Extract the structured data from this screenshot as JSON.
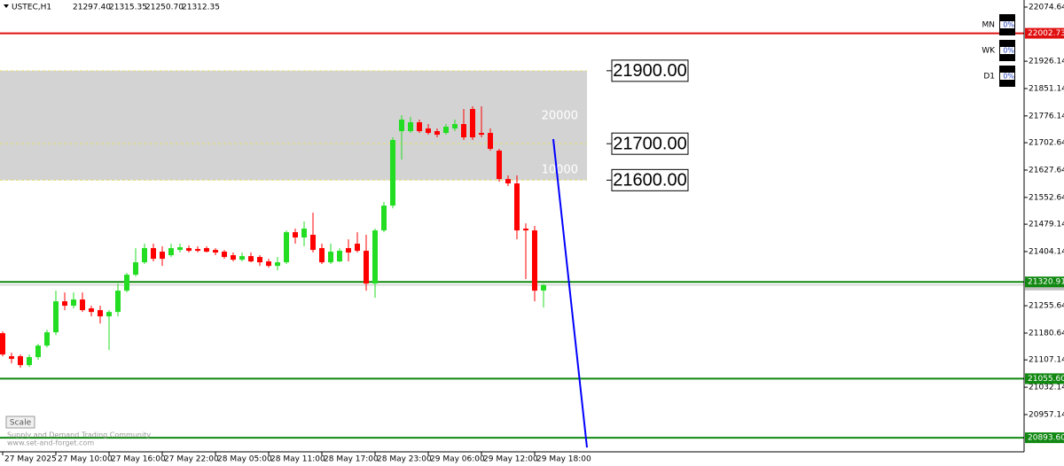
{
  "chart_data": {
    "type": "candlestick",
    "title": "USTEC,H1",
    "ohlc_header": [
      "21297.40",
      "21315.35",
      "21250.70",
      "21312.35"
    ],
    "ylim": [
      20855,
      22094
    ],
    "yticks": [
      22074.64,
      21926.14,
      21851.14,
      21776.14,
      21702.64,
      21627.64,
      21552.64,
      21479.14,
      21404.14,
      21255.64,
      21180.64,
      21107.14,
      21032.14,
      20957.14
    ],
    "categories": [
      "27 May 2025",
      null,
      null,
      null,
      null,
      null,
      "27 May 10:00",
      null,
      null,
      null,
      null,
      null,
      "27 May 16:00",
      null,
      null,
      null,
      null,
      null,
      "27 May 22:00",
      null,
      null,
      null,
      null,
      null,
      "28 May 05:00",
      null,
      null,
      null,
      null,
      null,
      "28 May 11:00",
      null,
      null,
      null,
      null,
      null,
      "28 May 17:00",
      null,
      null,
      null,
      null,
      null,
      "28 May 23:00",
      null,
      null,
      null,
      null,
      null,
      "29 May 06:00",
      null,
      null,
      null,
      null,
      null,
      "29 May 12:00",
      null,
      null,
      null,
      null,
      null,
      "29 May 18:00",
      null
    ],
    "open": [
      21180.3,
      21117.1,
      21117.1,
      21092.8,
      21114.7,
      21146.3,
      21182.8,
      21267.8,
      21255.7,
      21272.7,
      21248.4,
      21243.5,
      21226.5,
      21238.6,
      21297.0,
      21340.7,
      21374.7,
      21413.6,
      21403.9,
      21394.2,
      21408.7,
      21413.6,
      21411.2,
      21413.6,
      21408.7,
      21403.9,
      21394.2,
      21382.0,
      21391.7,
      21389.3,
      21377.2,
      21365.0,
      21374.7,
      21457.3,
      21442.8,
      21450.1,
      21413.6,
      21374.7,
      21377.2,
      21413.6,
      21425.8,
      21406.3,
      21316.4,
      21462.2,
      21530.2,
      21734.4,
      21734.4,
      21758.7,
      21741.7,
      21734.4,
      21729.5,
      21741.7,
      21753.8,
      21795.1,
      21729.5,
      21729.5,
      21680.9,
      21603.1,
      21591.0,
      21467.1,
      21462.2,
      21297.4
    ],
    "high": [
      21185.2,
      21126.9,
      21122.0,
      21122.0,
      21151.2,
      21190.0,
      21297.0,
      21292.1,
      21292.1,
      21292.1,
      21255.7,
      21255.7,
      21243.5,
      21316.4,
      21345.6,
      21413.6,
      21425.8,
      21425.8,
      21418.5,
      21425.8,
      21425.8,
      21420.9,
      21418.5,
      21418.5,
      21413.6,
      21408.7,
      21401.5,
      21401.5,
      21401.5,
      21394.2,
      21384.4,
      21389.3,
      21462.2,
      21467.1,
      21486.5,
      21510.8,
      21425.8,
      21425.8,
      21413.6,
      21437.9,
      21457.3,
      21450.1,
      21467.1,
      21540.0,
      21717.4,
      21778.1,
      21773.2,
      21766.0,
      21753.8,
      21741.7,
      21753.8,
      21766.0,
      21795.1,
      21802.4,
      21802.4,
      21741.7,
      21685.8,
      21612.9,
      21612.9,
      21481.6,
      21474.4,
      21315.35
    ],
    "low": [
      21117.1,
      21097.7,
      21085.6,
      21088.0,
      21107.4,
      21141.4,
      21175.5,
      21243.5,
      21248.4,
      21238.6,
      21226.5,
      21207.1,
      21134.2,
      21226.5,
      21292.1,
      21335.8,
      21369.9,
      21377.2,
      21365.0,
      21389.3,
      21401.5,
      21401.5,
      21401.5,
      21401.5,
      21394.2,
      21384.4,
      21377.2,
      21377.2,
      21374.7,
      21365.0,
      21360.1,
      21352.8,
      21369.9,
      21425.8,
      21418.5,
      21401.5,
      21369.9,
      21369.9,
      21374.7,
      21377.2,
      21401.5,
      21297.0,
      21277.5,
      21457.3,
      21522.9,
      21656.6,
      21729.5,
      21729.5,
      21724.6,
      21717.4,
      21724.6,
      21734.4,
      21710.1,
      21710.1,
      21717.4,
      21680.9,
      21595.8,
      21583.7,
      21437.9,
      21328.6,
      21267.8,
      21250.7
    ],
    "close": [
      21122.0,
      21109.9,
      21092.8,
      21114.7,
      21146.3,
      21182.8,
      21267.8,
      21255.7,
      21272.7,
      21243.5,
      21238.6,
      21226.5,
      21238.6,
      21297.0,
      21340.7,
      21374.7,
      21413.6,
      21384.4,
      21384.4,
      21413.6,
      21416.0,
      21406.3,
      21406.3,
      21403.9,
      21401.5,
      21389.3,
      21382.0,
      21391.7,
      21377.2,
      21374.7,
      21365.0,
      21374.7,
      21457.3,
      21442.8,
      21467.1,
      21408.7,
      21374.7,
      21403.9,
      21406.3,
      21401.5,
      21406.3,
      21316.4,
      21462.2,
      21530.2,
      21710.1,
      21766.0,
      21758.7,
      21734.4,
      21729.5,
      21724.6,
      21746.5,
      21753.8,
      21717.4,
      21717.4,
      21724.6,
      21685.8,
      21603.1,
      21591.0,
      21462.2,
      21462.2,
      21297.0,
      21312.35
    ],
    "up_color": "#22dd22",
    "down_color": "#ff0000",
    "grid": false,
    "levels": [
      {
        "value": 22002.73,
        "label": "22002.73",
        "color": "#e01010"
      },
      {
        "value": 21320.91,
        "label": "21320.91",
        "color": "#118811"
      },
      {
        "value": 21055.6,
        "label": "21055.60",
        "color": "#118811"
      },
      {
        "value": 20893.6,
        "label": "20893.60",
        "color": "#118811"
      }
    ],
    "zone": {
      "color": "#d3d3d3",
      "levels": [
        {
          "value": 21900,
          "label": "21900.00"
        },
        {
          "value": 21700,
          "label": "21700.00"
        },
        {
          "value": 21600,
          "label": "21600.00"
        }
      ],
      "notes": [
        "20000",
        "10000"
      ]
    },
    "trendline": {
      "x": [
        62.1,
        65.9
      ],
      "y": [
        21712.5,
        20866.9
      ],
      "color": "#0000ff"
    },
    "timeframes": [
      {
        "name": "MN",
        "value": "0%"
      },
      {
        "name": "WK",
        "value": "0%"
      },
      {
        "name": "D1",
        "value": "0%"
      }
    ],
    "scale_button": "Scale",
    "watermark": [
      "Supply and Demand Trading Community",
      "www.set-and-forget.com"
    ]
  }
}
